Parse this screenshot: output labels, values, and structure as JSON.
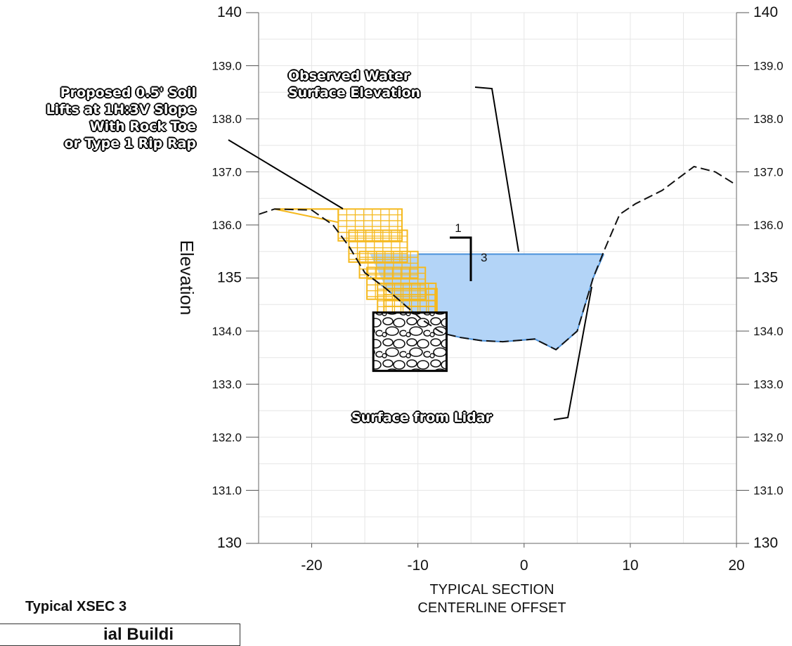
{
  "chart_data": {
    "type": "line",
    "xlabel": "TYPICAL SECTION\nCENTERLINE OFFSET",
    "ylabel": "Elevation",
    "xlim": [
      -25,
      20
    ],
    "ylim": [
      130,
      140
    ],
    "x_ticks": [
      -20,
      -10,
      0,
      10,
      20
    ],
    "y_tick_labels": [
      "130",
      "131.0",
      "132.0",
      "133.0",
      "134.0",
      "135",
      "136.0",
      "137.0",
      "138.0",
      "139.0",
      "140"
    ],
    "grid": true,
    "series": [
      {
        "name": "Surface from Lidar",
        "style": "dashed",
        "color": "#111111",
        "x": [
          -25,
          -23.5,
          -20,
          -18,
          -16.5,
          -15,
          -13,
          -11,
          -9.5,
          -8,
          -7.5,
          -6,
          -4,
          -2,
          1,
          3,
          5,
          6.5,
          7.5,
          9,
          10.5,
          13,
          16,
          18,
          20
        ],
        "y": [
          136.2,
          136.3,
          136.28,
          136.0,
          135.6,
          135.1,
          134.8,
          134.45,
          134.2,
          134.0,
          133.95,
          133.88,
          133.82,
          133.8,
          133.85,
          133.65,
          134.0,
          135.0,
          135.5,
          136.2,
          136.4,
          136.65,
          137.1,
          137.0,
          136.75
        ]
      },
      {
        "name": "Observed Water Surface Elevation",
        "style": "filled",
        "color": "#4a90d9",
        "fill": "#b3d4f7",
        "level": 135.45,
        "x_range": [
          -14.5,
          7.5
        ]
      }
    ],
    "annotations": [
      "Proposed 0.5' Soil\nLifts at 1H:3V Slope\nWith Rock Toe\nor Type 1 Rip Rap",
      "Observed Water\nSurface Elevation",
      "Surface from Lidar"
    ],
    "slope_label": {
      "run": "1",
      "rise": "3"
    }
  },
  "subtitle": "Typical XSEC 3",
  "partial_box_text": "ial Buildi"
}
